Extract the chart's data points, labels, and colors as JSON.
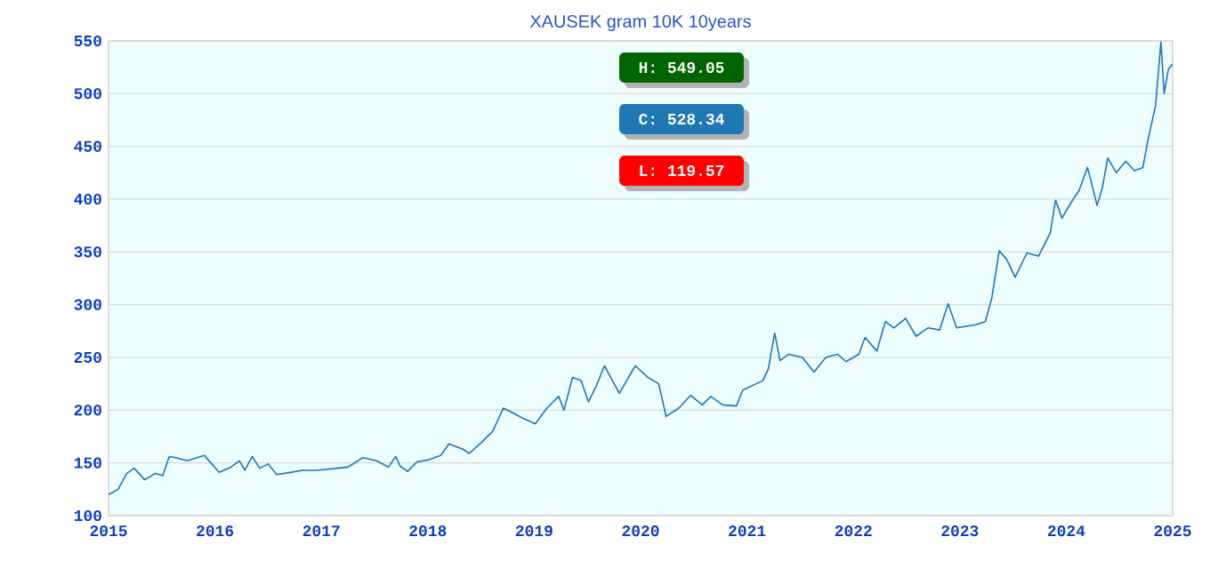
{
  "chart_data": {
    "type": "line",
    "title": "XAUSEK gram 10K 10years",
    "x": [
      2015.0,
      2015.09,
      2015.17,
      2015.24,
      2015.34,
      2015.44,
      2015.51,
      2015.57,
      2015.63,
      2015.74,
      2015.9,
      2016.04,
      2016.15,
      2016.23,
      2016.28,
      2016.35,
      2016.42,
      2016.5,
      2016.58,
      2016.71,
      2016.82,
      2016.96,
      2017.15,
      2017.25,
      2017.39,
      2017.52,
      2017.63,
      2017.7,
      2017.74,
      2017.81,
      2017.9,
      2018.01,
      2018.12,
      2018.2,
      2018.33,
      2018.39,
      2018.5,
      2018.61,
      2018.71,
      2018.79,
      2018.9,
      2019.01,
      2019.12,
      2019.23,
      2019.28,
      2019.36,
      2019.44,
      2019.51,
      2019.58,
      2019.66,
      2019.8,
      2019.95,
      2020.07,
      2020.17,
      2020.24,
      2020.36,
      2020.47,
      2020.58,
      2020.66,
      2020.77,
      2020.9,
      2020.96,
      2021.15,
      2021.2,
      2021.26,
      2021.31,
      2021.39,
      2021.52,
      2021.63,
      2021.74,
      2021.85,
      2021.93,
      2022.05,
      2022.11,
      2022.22,
      2022.3,
      2022.38,
      2022.49,
      2022.59,
      2022.7,
      2022.81,
      2022.89,
      2022.97,
      2023.15,
      2023.24,
      2023.3,
      2023.37,
      2023.44,
      2023.52,
      2023.63,
      2023.74,
      2023.85,
      2023.9,
      2023.96,
      2024.04,
      2024.12,
      2024.2,
      2024.29,
      2024.34,
      2024.39,
      2024.47,
      2024.56,
      2024.64,
      2024.72,
      2024.77,
      2024.84,
      2024.89,
      2024.92,
      2024.96,
      2025.0
    ],
    "series": [
      {
        "color": "#1f77b4",
        "values": [
          120,
          125,
          140,
          145,
          134,
          140,
          138,
          156,
          155,
          152,
          157,
          141,
          146,
          152,
          143,
          156,
          145,
          149,
          139,
          141,
          143,
          143,
          145,
          146,
          155,
          152,
          146,
          156,
          147,
          142,
          151,
          153,
          157,
          168,
          163,
          159,
          169,
          180,
          202,
          198,
          192,
          187,
          202,
          213,
          200,
          231,
          228,
          208,
          222,
          242,
          216,
          242,
          231,
          225,
          194,
          202,
          214,
          205,
          213,
          205,
          204,
          219,
          228,
          239,
          273,
          247,
          253,
          250,
          236,
          250,
          253,
          246,
          253,
          269,
          256,
          284,
          278,
          287,
          270,
          278,
          276,
          301,
          278,
          281,
          284,
          306,
          351,
          343,
          326,
          349,
          346,
          368,
          399,
          382,
          396,
          408,
          430,
          394,
          411,
          439,
          425,
          436,
          427,
          430,
          457,
          489,
          549,
          500,
          523,
          528
        ]
      }
    ],
    "xlim": [
      2015,
      2025
    ],
    "ylim": [
      100,
      550
    ],
    "xticks": [
      2015,
      2016,
      2017,
      2018,
      2019,
      2020,
      2021,
      2022,
      2023,
      2024,
      2025
    ],
    "yticks": [
      100,
      150,
      200,
      250,
      300,
      350,
      400,
      450,
      500,
      550
    ],
    "grid": "y",
    "annotations": [
      "H: 549.05",
      "C: 528.34",
      "L: 119.57"
    ]
  }
}
